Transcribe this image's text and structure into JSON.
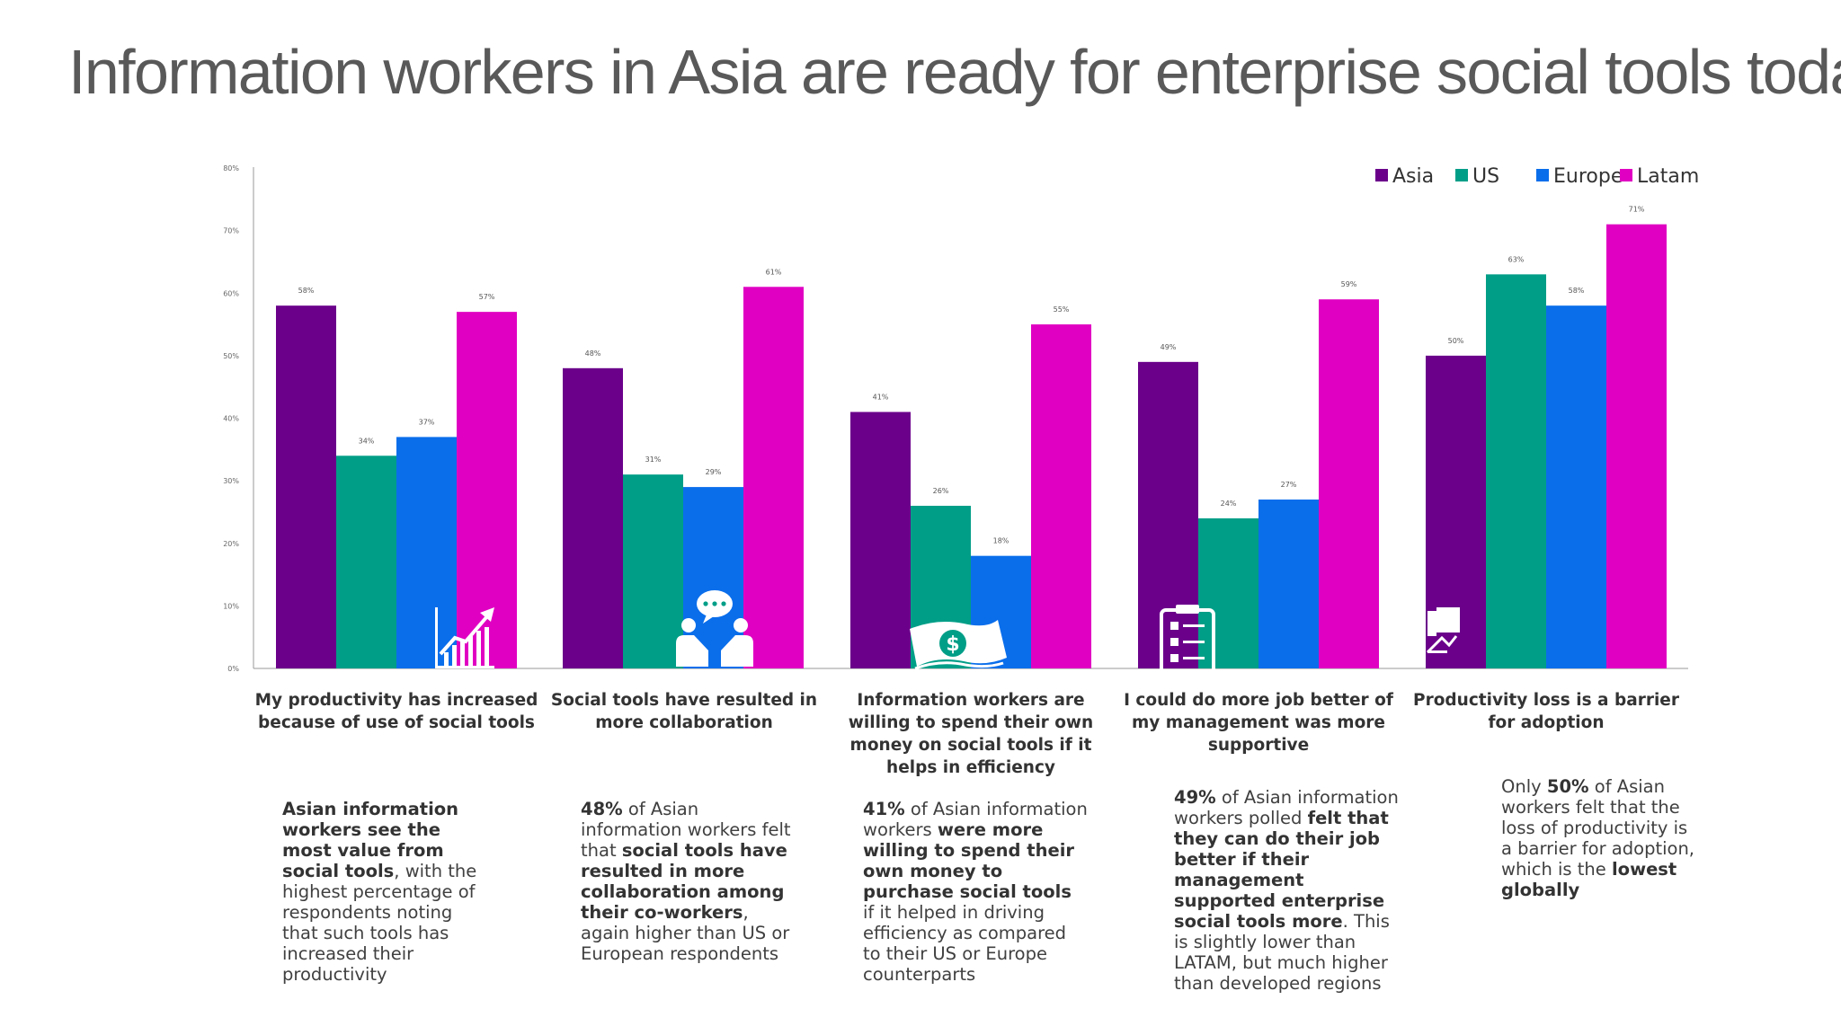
{
  "title": "Information workers in Asia are ready for enterprise social tools today",
  "colors": {
    "Asia": "#6B008B",
    "US": "#009E87",
    "Europe": "#0A6EEB",
    "Latam": "#E000C2"
  },
  "chart_data": {
    "type": "bar",
    "categories": [
      "My productivity has increased because of use of social tools",
      "Social tools have resulted in more collaboration",
      "Information workers are willing to spend their own money on social tools if it helps in efficiency",
      "I could do more job better of my management was more supportive",
      "Productivity loss is a barrier for adoption"
    ],
    "series": [
      {
        "name": "Asia",
        "values": [
          58,
          48,
          41,
          49,
          50
        ]
      },
      {
        "name": "US",
        "values": [
          34,
          31,
          26,
          24,
          63
        ]
      },
      {
        "name": "Europe",
        "values": [
          37,
          29,
          18,
          27,
          58
        ]
      },
      {
        "name": "Latam",
        "values": [
          57,
          61,
          55,
          59,
          71
        ]
      }
    ],
    "data_labels": [
      [
        "58%",
        "34%",
        "37%",
        "57%"
      ],
      [
        "48%",
        "31%",
        "29%",
        "61%"
      ],
      [
        "41%",
        "26%",
        "18%",
        "55%"
      ],
      [
        "49%",
        "24%",
        "27%",
        "59%"
      ],
      [
        "50%",
        "63%",
        "58%",
        "71%"
      ]
    ],
    "yticks": [
      "0%",
      "10%",
      "20%",
      "30%",
      "40%",
      "50%",
      "60%",
      "70%",
      "80%"
    ],
    "ylim": [
      0,
      80
    ],
    "legend": "top-right",
    "grid": false
  },
  "icons": [
    "growth-chart-icon",
    "chat-people-icon",
    "money-icon",
    "clipboard-checklist-icon",
    "broken-chart-icon"
  ],
  "notes": [
    [
      {
        "t": "Asian information workers see the most value from social tools",
        "b": true
      },
      {
        "t": ", with the highest percentage of respondents noting that such tools has increased their productivity",
        "b": false
      }
    ],
    [
      {
        "t": "48%",
        "b": true
      },
      {
        "t": " of Asian information workers felt that ",
        "b": false
      },
      {
        "t": "social tools have resulted in more collaboration among their co-workers",
        "b": true
      },
      {
        "t": ", again higher than US or European respondents",
        "b": false
      }
    ],
    [
      {
        "t": "41%",
        "b": true
      },
      {
        "t": " of Asian information workers ",
        "b": false
      },
      {
        "t": "were more willing to spend their own money to purchase social tools",
        "b": true
      },
      {
        "t": " if it helped in driving efficiency as compared to their US or Europe counterparts",
        "b": false
      }
    ],
    [
      {
        "t": "49%",
        "b": true
      },
      {
        "t": " of Asian information workers polled ",
        "b": false
      },
      {
        "t": "felt that they can do their job better if their management supported enterprise social tools more",
        "b": true
      },
      {
        "t": ". This is slightly lower than LATAM, but much higher than developed regions",
        "b": false
      }
    ],
    [
      {
        "t": "Only ",
        "b": false
      },
      {
        "t": "50%",
        "b": true
      },
      {
        "t": " of Asian workers felt that the loss of productivity is a barrier for adoption, which is the ",
        "b": false
      },
      {
        "t": "lowest globally",
        "b": true
      }
    ]
  ]
}
